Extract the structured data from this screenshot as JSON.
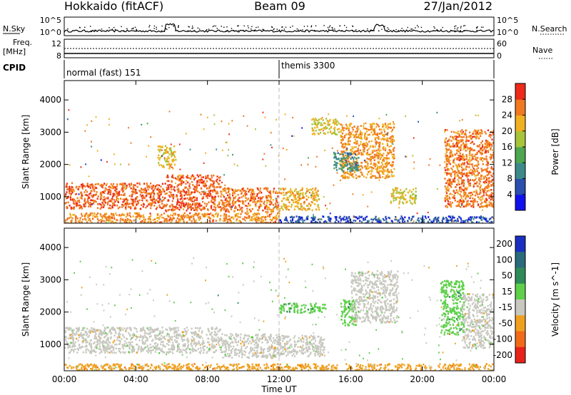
{
  "header": {
    "site": "Hokkaido (fitACF)",
    "beam": "Beam 09",
    "date": "27/Jan/2012"
  },
  "top_panels": {
    "nsky_label": "N.Sky",
    "nsearch_label": "N.Search",
    "nsky_ticks": [
      "10^5",
      "10^0"
    ],
    "nsearch_ticks": [
      "10^5",
      "10^0"
    ],
    "freq_label": "Freq.",
    "freq_unit": "[MHz]",
    "freq_ticks": [
      "12",
      "8"
    ],
    "nave_label": "Nave",
    "nave_ticks": [
      "60",
      "0"
    ],
    "cpid_label": "CPID",
    "cpid_modes": [
      {
        "name": "normal (fast) 151",
        "start_hour": 0
      },
      {
        "name": "themis 3300",
        "start_hour": 12
      }
    ]
  },
  "chart_data": [
    {
      "type": "heatmap",
      "name": "power",
      "ylabel": "Slant Range [km]",
      "xlabel": "Time UT",
      "x_ticks": [
        "00:00",
        "04:00",
        "08:00",
        "12:00",
        "16:00",
        "20:00",
        "00:00"
      ],
      "x_range_hours": [
        0,
        24
      ],
      "y_ticks": [
        1000,
        2000,
        3000,
        4000
      ],
      "ylim": [
        180,
        4600
      ],
      "colorbar": {
        "label": "Power [dB]",
        "ticks": [
          4,
          8,
          12,
          16,
          20,
          24,
          28
        ],
        "range": [
          0,
          32
        ],
        "colors": [
          "#1111ee",
          "#2a4fae",
          "#3d8a8a",
          "#4ea64e",
          "#a7c43a",
          "#f0b020",
          "#f07820",
          "#ee2a1a"
        ]
      },
      "regions": [
        {
          "t0": 0.0,
          "t1": 5.6,
          "r0": 650,
          "r1": 1450,
          "level": 27
        },
        {
          "t0": 5.6,
          "t1": 8.7,
          "r0": 600,
          "r1": 1700,
          "level": 27
        },
        {
          "t0": 8.7,
          "t1": 12.0,
          "r0": 550,
          "r1": 1300,
          "level": 26
        },
        {
          "t0": 12.0,
          "t1": 14.2,
          "r0": 600,
          "r1": 1300,
          "level": 22
        },
        {
          "t0": 0.0,
          "t1": 12.0,
          "r0": 200,
          "r1": 520,
          "level": 25
        },
        {
          "t0": 5.2,
          "t1": 6.2,
          "r0": 1900,
          "r1": 2600,
          "level": 21
        },
        {
          "t0": 13.8,
          "t1": 15.3,
          "r0": 2950,
          "r1": 3450,
          "level": 20
        },
        {
          "t0": 15.4,
          "t1": 18.4,
          "r0": 1600,
          "r1": 3300,
          "level": 24
        },
        {
          "t0": 15.0,
          "t1": 16.4,
          "r0": 1800,
          "r1": 2400,
          "level": 10
        },
        {
          "t0": 18.2,
          "t1": 19.6,
          "r0": 800,
          "r1": 1300,
          "level": 20
        },
        {
          "t0": 21.2,
          "t1": 24.0,
          "r0": 700,
          "r1": 3100,
          "level": 26
        },
        {
          "t0": 12.0,
          "t1": 24.0,
          "r0": 200,
          "r1": 420,
          "level": 6
        }
      ]
    },
    {
      "type": "heatmap",
      "name": "velocity",
      "ylabel": "Slant Range [km]",
      "xlabel": "Time UT",
      "x_ticks": [
        "00:00",
        "04:00",
        "08:00",
        "12:00",
        "16:00",
        "20:00",
        "00:00"
      ],
      "x_range_hours": [
        0,
        24
      ],
      "y_ticks": [
        1000,
        2000,
        3000,
        4000
      ],
      "ylim": [
        180,
        4600
      ],
      "colorbar": {
        "label": "Velocity [m s^-1]",
        "ticks": [
          "200",
          "100",
          "50",
          "15",
          "-15",
          "-50",
          "-100",
          "-200"
        ],
        "colors": [
          "#1a2fc0",
          "#2a6a7a",
          "#2f8a5a",
          "#5ed04a",
          "#c8c8c0",
          "#f0a020",
          "#f06a1a",
          "#e8221a"
        ]
      },
      "regions": [
        {
          "t0": 0.0,
          "t1": 8.7,
          "r0": 750,
          "r1": 1550,
          "class": "-15..15"
        },
        {
          "t0": 8.7,
          "t1": 12.0,
          "r0": 600,
          "r1": 1350,
          "class": "-15..15"
        },
        {
          "t0": 12.0,
          "t1": 14.5,
          "r0": 650,
          "r1": 1300,
          "class": "-15..15"
        },
        {
          "t0": 12.0,
          "t1": 14.6,
          "r0": 2000,
          "r1": 2300,
          "class": "15..50"
        },
        {
          "t0": 15.4,
          "t1": 16.3,
          "r0": 1600,
          "r1": 2400,
          "class": "15..50"
        },
        {
          "t0": 16.0,
          "t1": 18.6,
          "r0": 1700,
          "r1": 3300,
          "class": "-15..15"
        },
        {
          "t0": 21.0,
          "t1": 22.3,
          "r0": 1300,
          "r1": 3000,
          "class": "15..50"
        },
        {
          "t0": 22.2,
          "t1": 24.0,
          "r0": 900,
          "r1": 2600,
          "class": "-15..15"
        },
        {
          "t0": 0.0,
          "t1": 24.0,
          "r0": 200,
          "r1": 420,
          "class": "-50..-15"
        }
      ]
    }
  ]
}
